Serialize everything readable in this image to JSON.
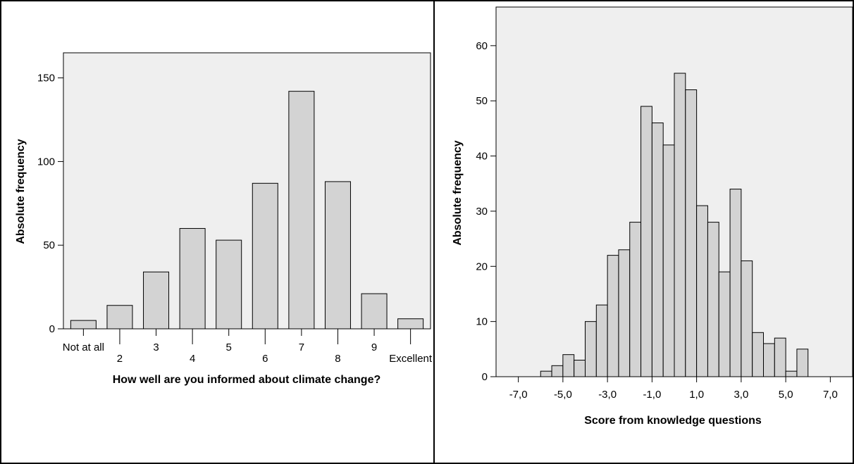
{
  "chart_data": [
    {
      "type": "bar",
      "categories": [
        "Not at all",
        "2",
        "3",
        "4",
        "5",
        "6",
        "7",
        "8",
        "9",
        "Excellent"
      ],
      "values": [
        5,
        14,
        34,
        60,
        53,
        87,
        142,
        88,
        21,
        6
      ],
      "xlabel": "How well are you informed about climate change?",
      "ylabel": "Absolute frequency",
      "ylim": [
        0,
        165
      ],
      "yticks": [
        0,
        50,
        100,
        150
      ],
      "ytick_labels": [
        "0",
        "50",
        "100",
        "150"
      ],
      "grid": false,
      "plot_background": "#efefef",
      "bar_fill": "#d3d3d3"
    },
    {
      "type": "bar",
      "subtype": "histogram",
      "bin_width": 0.5,
      "bins_start": [
        -6.0,
        -5.5,
        -5.0,
        -4.5,
        -4.0,
        -3.5,
        -3.0,
        -2.5,
        -2.0,
        -1.5,
        -1.0,
        -0.5,
        0.0,
        0.5,
        1.0,
        1.5,
        2.0,
        2.5,
        3.0,
        3.5,
        4.0,
        4.5,
        5.0,
        5.5
      ],
      "values": [
        1,
        2,
        4,
        3,
        10,
        13,
        22,
        23,
        28,
        49,
        46,
        42,
        55,
        52,
        31,
        28,
        19,
        34,
        21,
        8,
        6,
        7,
        1,
        5
      ],
      "xlabel": "Score from knowledge questions",
      "ylabel": "Absolute frequency",
      "xlim": [
        -8.0,
        8.0
      ],
      "xticks": [
        -7.0,
        -5.0,
        -3.0,
        -1.0,
        1.0,
        3.0,
        5.0,
        7.0
      ],
      "xtick_labels": [
        "-7,0",
        "-5,0",
        "-3,0",
        "-1,0",
        "1,0",
        "3,0",
        "5,0",
        "7,0"
      ],
      "ylim": [
        0,
        67
      ],
      "yticks": [
        0,
        10,
        20,
        30,
        40,
        50,
        60
      ],
      "ytick_labels": [
        "0",
        "10",
        "20",
        "30",
        "40",
        "50",
        "60"
      ],
      "grid": false,
      "plot_background": "#efefef",
      "bar_fill": "#d3d3d3"
    }
  ]
}
